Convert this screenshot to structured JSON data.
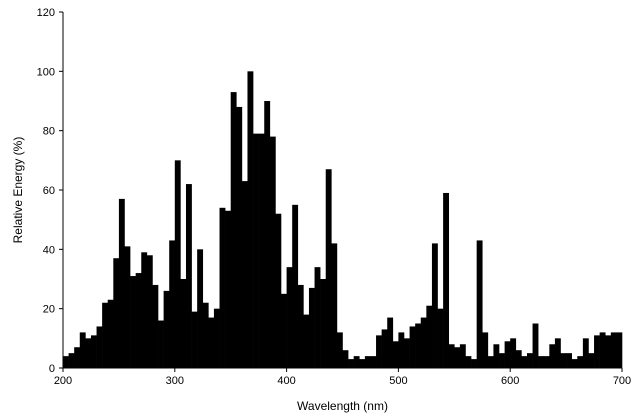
{
  "chart_data": {
    "type": "bar",
    "title": "",
    "xlabel": "Wavelength (nm)",
    "ylabel": "Relative Energy (%)",
    "xlim": [
      200,
      700
    ],
    "ylim": [
      0,
      120
    ],
    "x_ticks": [
      200,
      300,
      400,
      500,
      600,
      700
    ],
    "y_ticks": [
      0,
      20,
      40,
      60,
      80,
      100,
      120
    ],
    "grid": false,
    "legend": "none",
    "bar_color": "#000000",
    "bin_width": 5,
    "x": [
      200,
      205,
      210,
      215,
      220,
      225,
      230,
      235,
      240,
      245,
      250,
      255,
      260,
      265,
      270,
      275,
      280,
      285,
      290,
      295,
      300,
      305,
      310,
      315,
      320,
      325,
      330,
      335,
      340,
      345,
      350,
      355,
      360,
      365,
      370,
      375,
      380,
      385,
      390,
      395,
      400,
      405,
      410,
      415,
      420,
      425,
      430,
      435,
      440,
      445,
      450,
      455,
      460,
      465,
      470,
      475,
      480,
      485,
      490,
      495,
      500,
      505,
      510,
      515,
      520,
      525,
      530,
      535,
      540,
      545,
      550,
      555,
      560,
      565,
      570,
      575,
      580,
      585,
      590,
      595,
      600,
      605,
      610,
      615,
      620,
      625,
      630,
      635,
      640,
      645,
      650,
      655,
      660,
      665,
      670,
      675,
      680,
      685,
      690,
      695
    ],
    "values": [
      4,
      5,
      7,
      12,
      10,
      11,
      14,
      22,
      23,
      37,
      57,
      41,
      31,
      32,
      39,
      38,
      28,
      16,
      26,
      43,
      70,
      30,
      62,
      19,
      40,
      22,
      17,
      20,
      54,
      53,
      93,
      88,
      63,
      100,
      79,
      79,
      90,
      78,
      52,
      25,
      34,
      55,
      28,
      18,
      27,
      34,
      30,
      67,
      42,
      12,
      6,
      3,
      4,
      3,
      4,
      4,
      11,
      13,
      17,
      9,
      12,
      10,
      14,
      15,
      17,
      21,
      42,
      20,
      59,
      8,
      7,
      8,
      4,
      3,
      43,
      12,
      4,
      8,
      5,
      9,
      10,
      6,
      4,
      5,
      15,
      4,
      4,
      8,
      10,
      5,
      5,
      3,
      4,
      10,
      5,
      11,
      12,
      11,
      12,
      12
    ]
  }
}
